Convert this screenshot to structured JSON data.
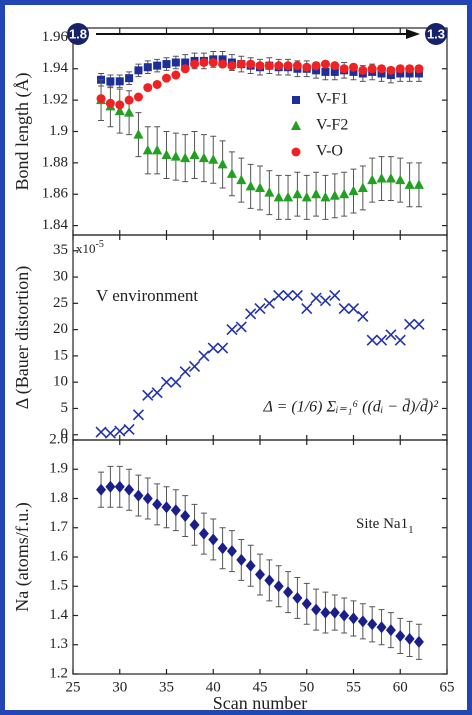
{
  "chart_data": [
    {
      "type": "scatter",
      "ylabel": "Bond length (Å)",
      "ylim": [
        1.834,
        1.966
      ],
      "yticks": [
        1.84,
        1.86,
        1.88,
        1.9,
        1.92,
        1.94,
        1.96
      ],
      "annotations": {
        "start": "1.8",
        "end": "1.3"
      },
      "series": [
        {
          "name": "V-F1",
          "color": "#1f2f9a",
          "marker": "square",
          "values": [
            1.933,
            1.932,
            1.932,
            1.934,
            1.939,
            1.941,
            1.942,
            1.943,
            1.944,
            1.944,
            1.945,
            1.945,
            1.946,
            1.946,
            1.944,
            1.943,
            1.942,
            1.941,
            1.942,
            1.941,
            1.941,
            1.94,
            1.94,
            1.939,
            1.938,
            1.938,
            1.939,
            1.938,
            1.937,
            1.938,
            1.937,
            1.936,
            1.937,
            1.937,
            1.937
          ],
          "errors": [
            0.004,
            0.004,
            0.004,
            0.004,
            0.004,
            0.004,
            0.004,
            0.004,
            0.004,
            0.005,
            0.005,
            0.005,
            0.005,
            0.005,
            0.005,
            0.005,
            0.005,
            0.005,
            0.005,
            0.005,
            0.005,
            0.005,
            0.005,
            0.005,
            0.005,
            0.005,
            0.005,
            0.005,
            0.005,
            0.005,
            0.005,
            0.005,
            0.005,
            0.005,
            0.005
          ]
        },
        {
          "name": "V-F2",
          "color": "#22a022",
          "marker": "triangle",
          "values": [
            1.92,
            1.916,
            1.913,
            1.912,
            1.898,
            1.888,
            1.888,
            1.885,
            1.884,
            1.883,
            1.885,
            1.883,
            1.882,
            1.879,
            1.873,
            1.869,
            1.865,
            1.864,
            1.861,
            1.858,
            1.858,
            1.86,
            1.858,
            1.86,
            1.858,
            1.859,
            1.86,
            1.862,
            1.864,
            1.869,
            1.87,
            1.87,
            1.869,
            1.866,
            1.866
          ],
          "errors": [
            0.013,
            0.013,
            0.014,
            0.014,
            0.014,
            0.015,
            0.015,
            0.015,
            0.015,
            0.015,
            0.015,
            0.015,
            0.015,
            0.015,
            0.014,
            0.014,
            0.014,
            0.014,
            0.014,
            0.014,
            0.014,
            0.014,
            0.014,
            0.014,
            0.014,
            0.014,
            0.014,
            0.014,
            0.014,
            0.014,
            0.014,
            0.014,
            0.014,
            0.014,
            0.014
          ]
        },
        {
          "name": "V-O",
          "color": "#ee2222",
          "marker": "circle",
          "values": [
            1.921,
            1.918,
            1.917,
            1.92,
            1.922,
            1.928,
            1.93,
            1.934,
            1.936,
            1.94,
            1.943,
            1.944,
            1.944,
            1.943,
            1.942,
            1.943,
            1.943,
            1.942,
            1.942,
            1.942,
            1.942,
            1.942,
            1.941,
            1.942,
            1.943,
            1.942,
            1.94,
            1.941,
            1.939,
            1.94,
            1.94,
            1.939,
            1.94,
            1.94,
            1.94
          ]
        }
      ]
    },
    {
      "type": "scatter",
      "ylabel": "Δ (Bauer distortion)",
      "ylim": [
        -1,
        38
      ],
      "yticks": [
        0,
        5,
        10,
        15,
        20,
        25,
        30,
        35
      ],
      "multiplier": {
        "base": "x10",
        "exponent": "-5"
      },
      "annotation": "V environment",
      "formula": "Δ = (1/6) Σᵢ₌₁⁶ ((dᵢ − d̄)/d̄)²",
      "series": [
        {
          "color": "#2233aa",
          "marker": "cross",
          "values": [
            0.5,
            0.3,
            0.7,
            1,
            3.8,
            7.5,
            8,
            10,
            10,
            12,
            13,
            15,
            16.5,
            16.5,
            20,
            20.5,
            23,
            24,
            25,
            26.5,
            26.5,
            26.5,
            24,
            26,
            25.5,
            26.5,
            24,
            24,
            22.5,
            18,
            18,
            19,
            18,
            21,
            21
          ]
        }
      ]
    },
    {
      "type": "scatter",
      "ylabel": "Na (atoms/f.u.)",
      "xlabel": "Scan number",
      "ylim": [
        1.2,
        2.0
      ],
      "yticks": [
        1.2,
        1.3,
        1.4,
        1.5,
        1.6,
        1.7,
        1.8,
        1.9,
        {
          "value": 2.0,
          "label": "2.0"
        }
      ],
      "xlim": [
        25,
        65
      ],
      "xticks": [
        25,
        30,
        35,
        40,
        45,
        50,
        55,
        60,
        65
      ],
      "x": [
        28,
        29,
        30,
        31,
        32,
        33,
        34,
        35,
        36,
        37,
        38,
        39,
        40,
        41,
        42,
        43,
        44,
        45,
        46,
        47,
        48,
        49,
        50,
        51,
        52,
        53,
        54,
        55,
        56,
        57,
        58,
        59,
        60,
        61,
        62
      ],
      "annotation": {
        "text": "Site Na1",
        "subscript": "1"
      },
      "series": [
        {
          "color": "#1a1f8a",
          "marker": "diamond",
          "values": [
            1.83,
            1.84,
            1.84,
            1.83,
            1.81,
            1.8,
            1.78,
            1.77,
            1.76,
            1.74,
            1.71,
            1.68,
            1.66,
            1.63,
            1.62,
            1.59,
            1.57,
            1.54,
            1.52,
            1.5,
            1.48,
            1.46,
            1.44,
            1.42,
            1.41,
            1.41,
            1.4,
            1.39,
            1.38,
            1.37,
            1.36,
            1.35,
            1.33,
            1.32,
            1.31
          ],
          "errors": [
            0.06,
            0.07,
            0.07,
            0.07,
            0.07,
            0.07,
            0.07,
            0.07,
            0.07,
            0.07,
            0.07,
            0.07,
            0.07,
            0.07,
            0.07,
            0.07,
            0.07,
            0.07,
            0.07,
            0.07,
            0.07,
            0.07,
            0.07,
            0.07,
            0.07,
            0.06,
            0.06,
            0.06,
            0.06,
            0.06,
            0.06,
            0.06,
            0.06,
            0.06,
            0.06
          ]
        }
      ]
    }
  ]
}
